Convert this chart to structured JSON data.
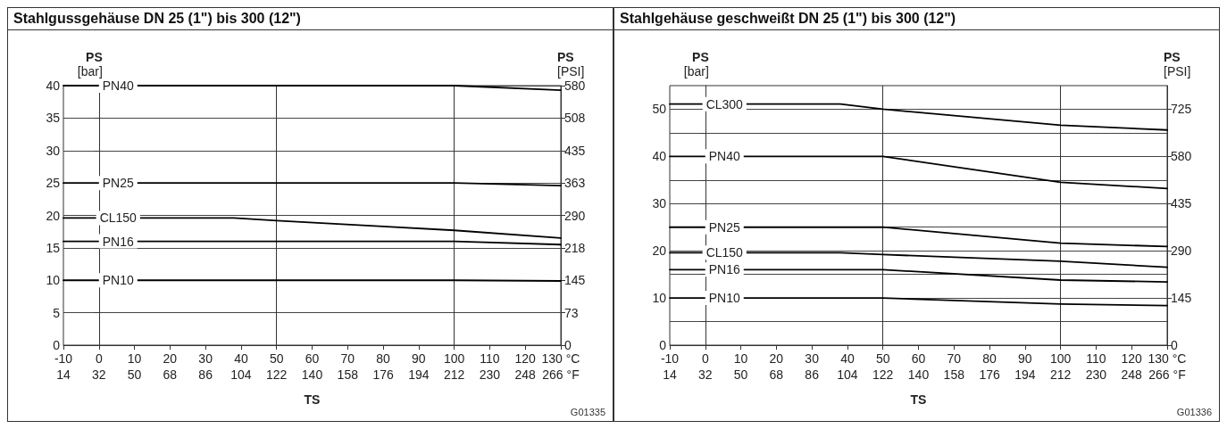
{
  "chart_data": [
    {
      "type": "line",
      "title": "Stahlgussgehäuse DN 25 (1\") bis 300 (12\")",
      "xlabel": "TS",
      "ylabel": "PS [bar]",
      "y2label": "PS [PSI]",
      "xlim": [
        -10,
        130
      ],
      "xticks": [
        -10,
        0,
        10,
        20,
        30,
        40,
        50,
        60,
        70,
        80,
        90,
        100,
        110,
        120,
        {
          "value": 130,
          "label": "130 °C"
        }
      ],
      "x2lim": [
        14,
        266
      ],
      "x2ticks": [
        14,
        32,
        50,
        68,
        86,
        104,
        122,
        140,
        158,
        176,
        194,
        212,
        230,
        248,
        {
          "value": 266,
          "label": "266 °F"
        }
      ],
      "ylim": [
        0,
        40
      ],
      "yticks": [
        0,
        5,
        10,
        15,
        20,
        25,
        30,
        35,
        40
      ],
      "y2lim": [
        0,
        580
      ],
      "y2ticks": [
        0,
        {
          "value": 72.5,
          "label": "73"
        },
        145,
        {
          "value": 217.5,
          "label": "218"
        },
        290,
        {
          "value": 362.5,
          "label": "363"
        },
        435,
        {
          "value": 507.5,
          "label": "508"
        },
        580
      ],
      "grid": "y",
      "ref_lines": [
        {
          "axis": "x",
          "value": 0,
          "color": "#333333"
        },
        {
          "axis": "x",
          "value": 50,
          "color": "#333333"
        },
        {
          "axis": "x",
          "value": 100,
          "color": "#333333"
        }
      ],
      "series": [
        {
          "name": "PN40",
          "color": "#000000",
          "x": [
            -10,
            100,
            130
          ],
          "values": [
            40,
            40,
            39.3
          ]
        },
        {
          "name": "PN25",
          "color": "#000000",
          "x": [
            -10,
            100,
            130
          ],
          "values": [
            25,
            25,
            24.6
          ]
        },
        {
          "name": "CL150",
          "color": "#000000",
          "x": [
            -10,
            38,
            50,
            100,
            130
          ],
          "values": [
            19.6,
            19.6,
            19.2,
            17.7,
            16.5
          ]
        },
        {
          "name": "PN16",
          "color": "#000000",
          "x": [
            -10,
            100,
            130
          ],
          "values": [
            16,
            16,
            15.5
          ]
        },
        {
          "name": "PN10",
          "color": "#000000",
          "x": [
            -10,
            100,
            130
          ],
          "values": [
            10,
            10,
            9.9
          ]
        }
      ],
      "annotations": [
        "G01335"
      ]
    },
    {
      "type": "line",
      "title": "Stahlgehäuse geschweißt DN 25 (1\") bis 300 (12\")",
      "xlabel": "TS",
      "ylabel": "PS [bar]",
      "y2label": "PS [PSI]",
      "xlim": [
        -10,
        130
      ],
      "xticks": [
        -10,
        0,
        10,
        20,
        30,
        40,
        50,
        60,
        70,
        80,
        90,
        100,
        110,
        120,
        {
          "value": 130,
          "label": "130 °C"
        }
      ],
      "x2lim": [
        14,
        266
      ],
      "x2ticks": [
        14,
        32,
        50,
        68,
        86,
        104,
        122,
        140,
        158,
        176,
        194,
        212,
        230,
        248,
        {
          "value": 266,
          "label": "266 °F"
        }
      ],
      "ylim": [
        0,
        55
      ],
      "yticks": [
        0,
        {
          "value": 5,
          "label": null
        },
        10,
        {
          "value": 15,
          "label": null
        },
        20,
        {
          "value": 25,
          "label": null
        },
        30,
        {
          "value": 35,
          "label": null
        },
        40,
        {
          "value": 45,
          "label": null
        },
        50
      ],
      "y2lim": [
        0,
        797.5
      ],
      "y2ticks": [
        0,
        145,
        290,
        435,
        580,
        725
      ],
      "grid": "y",
      "ref_lines": [
        {
          "axis": "x",
          "value": 0,
          "color": "#333333"
        },
        {
          "axis": "x",
          "value": 50,
          "color": "#333333"
        },
        {
          "axis": "x",
          "value": 100,
          "color": "#333333"
        }
      ],
      "series": [
        {
          "name": "CL300",
          "color": "#000000",
          "x": [
            -10,
            38,
            50,
            100,
            130
          ],
          "values": [
            51.1,
            51.1,
            50,
            46.6,
            45.6
          ]
        },
        {
          "name": "PN40",
          "color": "#000000",
          "x": [
            -10,
            50,
            100,
            130
          ],
          "values": [
            40,
            40,
            34.5,
            33.2
          ]
        },
        {
          "name": "PN25",
          "color": "#000000",
          "x": [
            -10,
            50,
            100,
            130
          ],
          "values": [
            25,
            25,
            21.6,
            20.9
          ]
        },
        {
          "name": "CL150",
          "color": "#000000",
          "x": [
            -10,
            38,
            50,
            100,
            130
          ],
          "values": [
            19.6,
            19.6,
            19.2,
            17.8,
            16.5
          ]
        },
        {
          "name": "PN16",
          "color": "#000000",
          "x": [
            -10,
            50,
            100,
            130
          ],
          "values": [
            16,
            16,
            13.8,
            13.4
          ]
        },
        {
          "name": "PN10",
          "color": "#000000",
          "x": [
            -10,
            50,
            100,
            130
          ],
          "values": [
            10,
            10,
            8.7,
            8.4
          ]
        }
      ],
      "annotations": [
        "G01336"
      ]
    }
  ]
}
